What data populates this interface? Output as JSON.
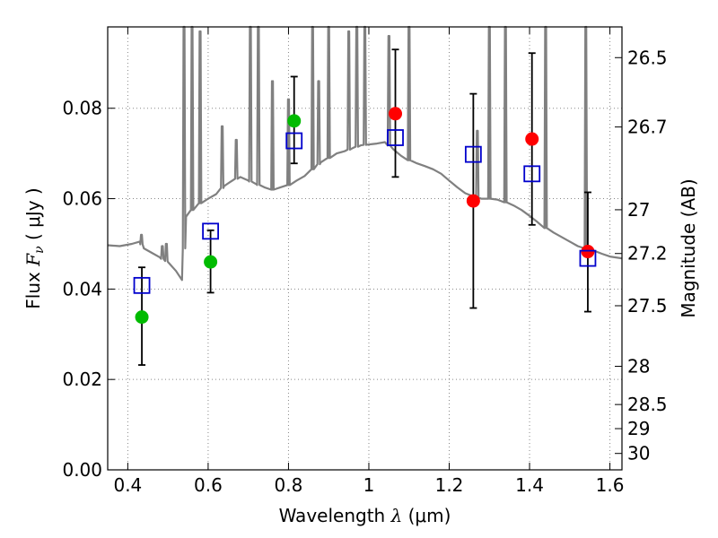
{
  "chart_data": {
    "type": "scatter",
    "xlabel": "Wavelength  λ (μm)",
    "ylabel": "Flux  F_ν  ( μJy )",
    "ylabel_parts": {
      "prefix": "Flux  ",
      "symbol": "F",
      "subscript": "ν",
      "suffix": "  ( μJy )"
    },
    "xlabel_parts": {
      "prefix": "Wavelength  ",
      "symbol": "λ",
      "suffix": " (μm)"
    },
    "y2label": "Magnitude (AB)",
    "xlim": [
      0.35,
      1.63
    ],
    "ylim": [
      0.0,
      0.098
    ],
    "x_ticks": [
      {
        "value": 0.4,
        "label": "0.4"
      },
      {
        "value": 0.6,
        "label": "0.6"
      },
      {
        "value": 0.8,
        "label": "0.8"
      },
      {
        "value": 1.0,
        "label": "1"
      },
      {
        "value": 1.2,
        "label": "1.2"
      },
      {
        "value": 1.4,
        "label": "1.4"
      },
      {
        "value": 1.6,
        "label": "1.6"
      }
    ],
    "y_ticks": [
      {
        "value": 0.0,
        "label": "0.00"
      },
      {
        "value": 0.02,
        "label": "0.02"
      },
      {
        "value": 0.04,
        "label": "0.04"
      },
      {
        "value": 0.06,
        "label": "0.06"
      },
      {
        "value": 0.08,
        "label": "0.08"
      }
    ],
    "mag_ticks": [
      {
        "value": 26.5,
        "label": "26.5"
      },
      {
        "value": 26.7,
        "label": "26.7"
      },
      {
        "value": 27.0,
        "label": "27"
      },
      {
        "value": 27.2,
        "label": "27.2"
      },
      {
        "value": 27.5,
        "label": "27.5"
      },
      {
        "value": 28.0,
        "label": "28"
      },
      {
        "value": 28.5,
        "label": "28.5"
      },
      {
        "value": 29.0,
        "label": "29"
      },
      {
        "value": 30.0,
        "label": "30"
      }
    ],
    "grid": true,
    "colors": {
      "green": "#00bb00",
      "red": "#ff0000",
      "model_box": "#0000cc",
      "template": "#808080",
      "errorbar": "#000000",
      "grid": "#888888"
    },
    "observed_points": [
      {
        "x": 0.435,
        "y": 0.0338,
        "yerr_low": 0.0232,
        "yerr_high": 0.0448,
        "color": "green"
      },
      {
        "x": 0.606,
        "y": 0.046,
        "yerr_low": 0.0392,
        "yerr_high": 0.053,
        "color": "green"
      },
      {
        "x": 0.814,
        "y": 0.0772,
        "yerr_low": 0.0678,
        "yerr_high": 0.087,
        "color": "green"
      },
      {
        "x": 1.066,
        "y": 0.0788,
        "yerr_low": 0.0648,
        "yerr_high": 0.093,
        "color": "red"
      },
      {
        "x": 1.26,
        "y": 0.0595,
        "yerr_low": 0.0358,
        "yerr_high": 0.0832,
        "color": "red"
      },
      {
        "x": 1.406,
        "y": 0.0732,
        "yerr_low": 0.0542,
        "yerr_high": 0.0922,
        "color": "red"
      },
      {
        "x": 1.545,
        "y": 0.0483,
        "yerr_low": 0.035,
        "yerr_high": 0.0614,
        "color": "red"
      }
    ],
    "model_points": [
      {
        "x": 0.435,
        "y": 0.0408
      },
      {
        "x": 0.606,
        "y": 0.0528
      },
      {
        "x": 0.814,
        "y": 0.0728
      },
      {
        "x": 1.066,
        "y": 0.0735
      },
      {
        "x": 1.26,
        "y": 0.0698
      },
      {
        "x": 1.406,
        "y": 0.0655
      },
      {
        "x": 1.545,
        "y": 0.0468
      }
    ],
    "template_continuum": [
      [
        0.35,
        0.0497
      ],
      [
        0.38,
        0.0495
      ],
      [
        0.41,
        0.05
      ],
      [
        0.43,
        0.0505
      ],
      [
        0.44,
        0.049
      ],
      [
        0.46,
        0.048
      ],
      [
        0.48,
        0.047
      ],
      [
        0.5,
        0.046
      ],
      [
        0.52,
        0.044
      ],
      [
        0.535,
        0.042
      ],
      [
        0.545,
        0.056
      ],
      [
        0.56,
        0.0575
      ],
      [
        0.58,
        0.059
      ],
      [
        0.6,
        0.06
      ],
      [
        0.62,
        0.061
      ],
      [
        0.64,
        0.0628
      ],
      [
        0.66,
        0.064
      ],
      [
        0.68,
        0.0648
      ],
      [
        0.7,
        0.064
      ],
      [
        0.72,
        0.0632
      ],
      [
        0.74,
        0.0625
      ],
      [
        0.76,
        0.062
      ],
      [
        0.78,
        0.0625
      ],
      [
        0.8,
        0.063
      ],
      [
        0.82,
        0.064
      ],
      [
        0.84,
        0.065
      ],
      [
        0.86,
        0.0665
      ],
      [
        0.88,
        0.068
      ],
      [
        0.9,
        0.069
      ],
      [
        0.92,
        0.07
      ],
      [
        0.94,
        0.0705
      ],
      [
        0.96,
        0.0712
      ],
      [
        0.98,
        0.0718
      ],
      [
        1.0,
        0.072
      ],
      [
        1.02,
        0.0722
      ],
      [
        1.04,
        0.0725
      ],
      [
        1.06,
        0.071
      ],
      [
        1.08,
        0.0695
      ],
      [
        1.1,
        0.0685
      ],
      [
        1.12,
        0.0678
      ],
      [
        1.14,
        0.0672
      ],
      [
        1.16,
        0.0665
      ],
      [
        1.18,
        0.0655
      ],
      [
        1.2,
        0.064
      ],
      [
        1.22,
        0.0625
      ],
      [
        1.24,
        0.0612
      ],
      [
        1.26,
        0.0605
      ],
      [
        1.28,
        0.06
      ],
      [
        1.3,
        0.06
      ],
      [
        1.32,
        0.0598
      ],
      [
        1.34,
        0.0592
      ],
      [
        1.36,
        0.0585
      ],
      [
        1.38,
        0.0575
      ],
      [
        1.4,
        0.0562
      ],
      [
        1.42,
        0.0548
      ],
      [
        1.44,
        0.0535
      ],
      [
        1.46,
        0.0525
      ],
      [
        1.48,
        0.0515
      ],
      [
        1.5,
        0.0505
      ],
      [
        1.52,
        0.0495
      ],
      [
        1.54,
        0.049
      ],
      [
        1.56,
        0.0485
      ],
      [
        1.58,
        0.0478
      ],
      [
        1.6,
        0.0472
      ],
      [
        1.63,
        0.0468
      ]
    ],
    "template_lines": [
      {
        "x": 0.434,
        "peak": 0.052
      },
      {
        "x": 0.486,
        "peak": 0.0495
      },
      {
        "x": 0.496,
        "peak": 0.05
      },
      {
        "x": 0.54,
        "peak": 0.098
      },
      {
        "x": 0.56,
        "peak": 0.098
      },
      {
        "x": 0.58,
        "peak": 0.097
      },
      {
        "x": 0.635,
        "peak": 0.076
      },
      {
        "x": 0.67,
        "peak": 0.073
      },
      {
        "x": 0.705,
        "peak": 0.098
      },
      {
        "x": 0.725,
        "peak": 0.098
      },
      {
        "x": 0.76,
        "peak": 0.086
      },
      {
        "x": 0.8,
        "peak": 0.082
      },
      {
        "x": 0.86,
        "peak": 0.098
      },
      {
        "x": 0.875,
        "peak": 0.086
      },
      {
        "x": 0.9,
        "peak": 0.098
      },
      {
        "x": 0.95,
        "peak": 0.097
      },
      {
        "x": 0.97,
        "peak": 0.098
      },
      {
        "x": 0.99,
        "peak": 0.098
      },
      {
        "x": 1.05,
        "peak": 0.096
      },
      {
        "x": 1.1,
        "peak": 0.098
      },
      {
        "x": 1.27,
        "peak": 0.075
      },
      {
        "x": 1.3,
        "peak": 0.098
      },
      {
        "x": 1.34,
        "peak": 0.098
      },
      {
        "x": 1.44,
        "peak": 0.098
      },
      {
        "x": 1.54,
        "peak": 0.098
      }
    ]
  }
}
